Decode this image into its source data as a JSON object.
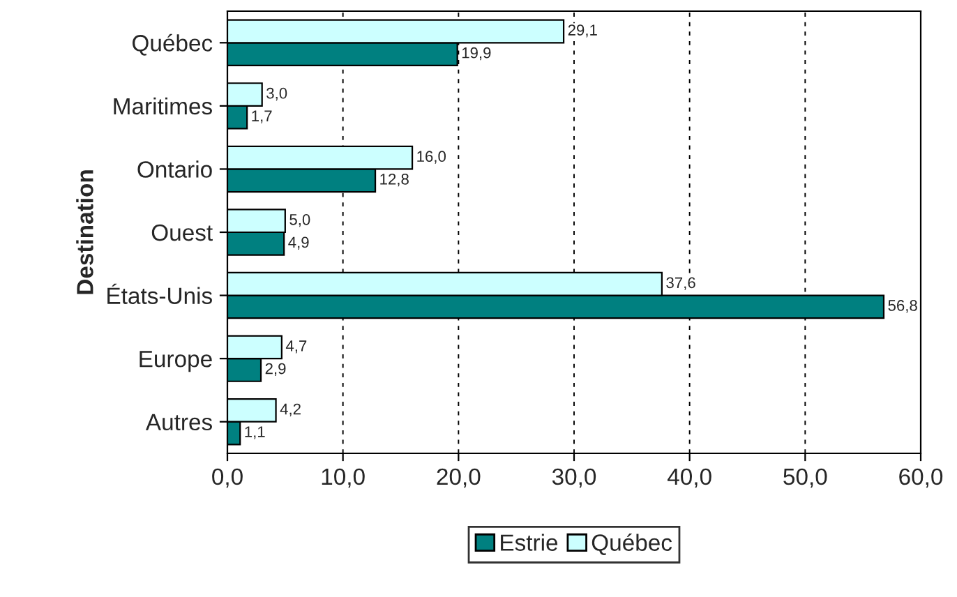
{
  "chart_data": {
    "type": "bar",
    "orientation": "horizontal",
    "ylabel": "Destination",
    "categories": [
      "Québec",
      "Maritimes",
      "Ontario",
      "Ouest",
      "États-Unis",
      "Europe",
      "Autres"
    ],
    "series": [
      {
        "name": "Estrie",
        "color": "#008080",
        "values": [
          19.9,
          1.7,
          12.8,
          4.9,
          56.8,
          2.9,
          1.1
        ],
        "value_labels": [
          "19,9",
          "1,7",
          "12,8",
          "4,9",
          "56,8",
          "2,9",
          "1,1"
        ]
      },
      {
        "name": "Québec",
        "color": "#ccffff",
        "values": [
          29.1,
          3.0,
          16.0,
          5.0,
          37.6,
          4.7,
          4.2
        ],
        "value_labels": [
          "29,1",
          "3,0",
          "16,0",
          "5,0",
          "37,6",
          "4,7",
          "4,2"
        ]
      }
    ],
    "xlim": [
      0,
      60
    ],
    "xticks": [
      {
        "value": 0,
        "label": "0,0"
      },
      {
        "value": 10,
        "label": "10,0"
      },
      {
        "value": 20,
        "label": "20,0"
      },
      {
        "value": 30,
        "label": "30,0"
      },
      {
        "value": 40,
        "label": "40,0"
      },
      {
        "value": 50,
        "label": "50,0"
      },
      {
        "value": 60,
        "label": "60,0"
      }
    ],
    "grid": "x",
    "legend": "bottom"
  }
}
